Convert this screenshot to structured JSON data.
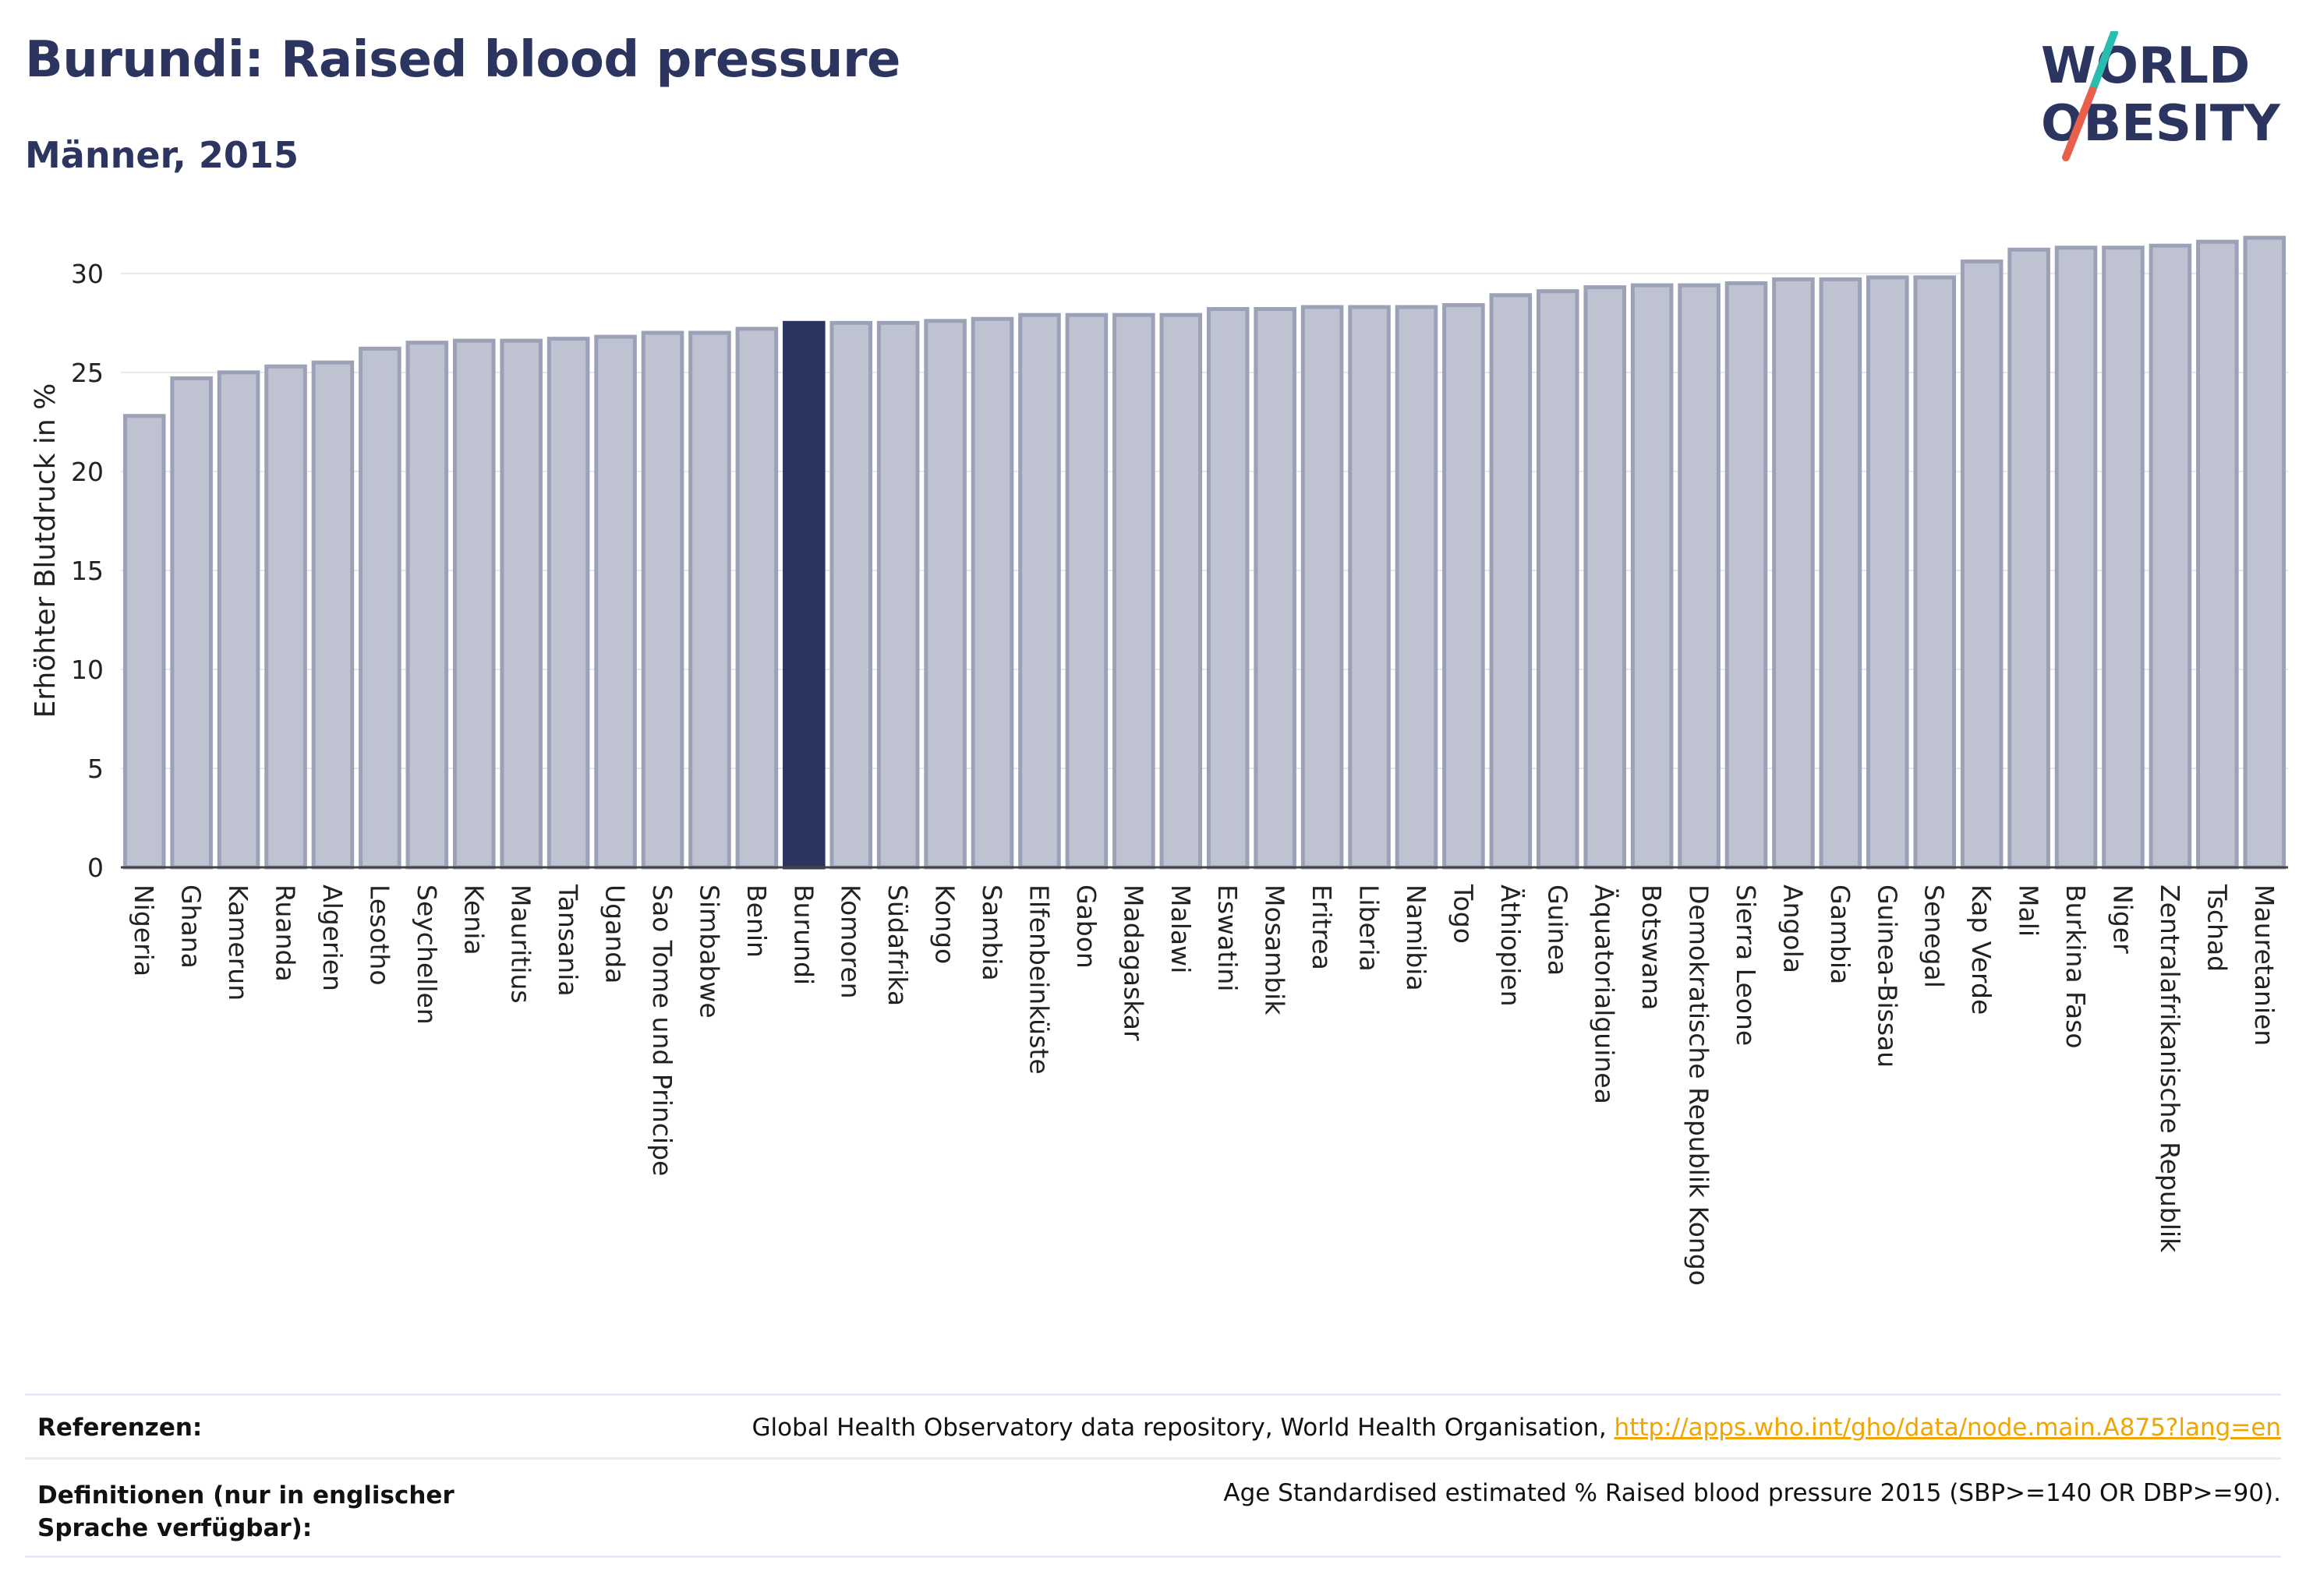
{
  "header": {
    "title": "Burundi: Raised blood pressure",
    "subtitle": "Männer, 2015"
  },
  "logo": {
    "line1": "WORLD",
    "line2": "OBESITY",
    "colors": {
      "text": "#2b3560",
      "slash_top": "#2bbcb0",
      "slash_bottom": "#e8604c"
    }
  },
  "colors": {
    "bar_fill": "#bfc3d1",
    "bar_stroke": "#9ba1b7",
    "highlight": "#2b3560",
    "grid": "#e6e8ee"
  },
  "chart_data": {
    "type": "bar",
    "title": "",
    "xlabel": "",
    "ylabel": "Erhöhter Blutdruck in %",
    "ylim": [
      0,
      32
    ],
    "yticks": [
      0,
      5,
      10,
      15,
      20,
      25,
      30
    ],
    "grid": true,
    "highlight_category": "Burundi",
    "categories": [
      "Nigeria",
      "Ghana",
      "Kamerun",
      "Ruanda",
      "Algerien",
      "Lesotho",
      "Seychellen",
      "Kenia",
      "Mauritius",
      "Tansania",
      "Uganda",
      "Sao Tome und Principe",
      "Simbabwe",
      "Benin",
      "Burundi",
      "Komoren",
      "Südafrika",
      "Kongo",
      "Sambia",
      "Elfenbeinküste",
      "Gabon",
      "Madagaskar",
      "Malawi",
      "Eswatini",
      "Mosambik",
      "Eritrea",
      "Liberia",
      "Namibia",
      "Togo",
      "Äthiopien",
      "Guinea",
      "Äquatorialguinea",
      "Botswana",
      "Demokratische Republik Kongo",
      "Sierra Leone",
      "Angola",
      "Gambia",
      "Guinea-Bissau",
      "Senegal",
      "Kap Verde",
      "Mali",
      "Burkina Faso",
      "Niger",
      "Zentralafrikanische Republik",
      "Tschad",
      "Mauretanien"
    ],
    "values": [
      22.8,
      24.7,
      25.0,
      25.3,
      25.5,
      26.2,
      26.5,
      26.6,
      26.6,
      26.7,
      26.8,
      27.0,
      27.0,
      27.2,
      27.5,
      27.5,
      27.5,
      27.6,
      27.7,
      27.9,
      27.9,
      27.9,
      27.9,
      28.2,
      28.2,
      28.3,
      28.3,
      28.3,
      28.4,
      28.9,
      29.1,
      29.3,
      29.4,
      29.4,
      29.5,
      29.7,
      29.7,
      29.8,
      29.8,
      30.6,
      31.2,
      31.3,
      31.3,
      31.4,
      31.6,
      31.8
    ]
  },
  "footer": {
    "references_label": "Referenzen:",
    "references_text": "Global Health Observatory data repository, World Health Organisation, ",
    "references_link": "http://apps.who.int/gho/data/node.main.A875?lang=en",
    "definitions_label": "Definitionen (nur in englischer Sprache verfügbar):",
    "definitions_text": "Age Standardised estimated % Raised blood pressure 2015 (SBP>=140 OR DBP>=90)."
  }
}
